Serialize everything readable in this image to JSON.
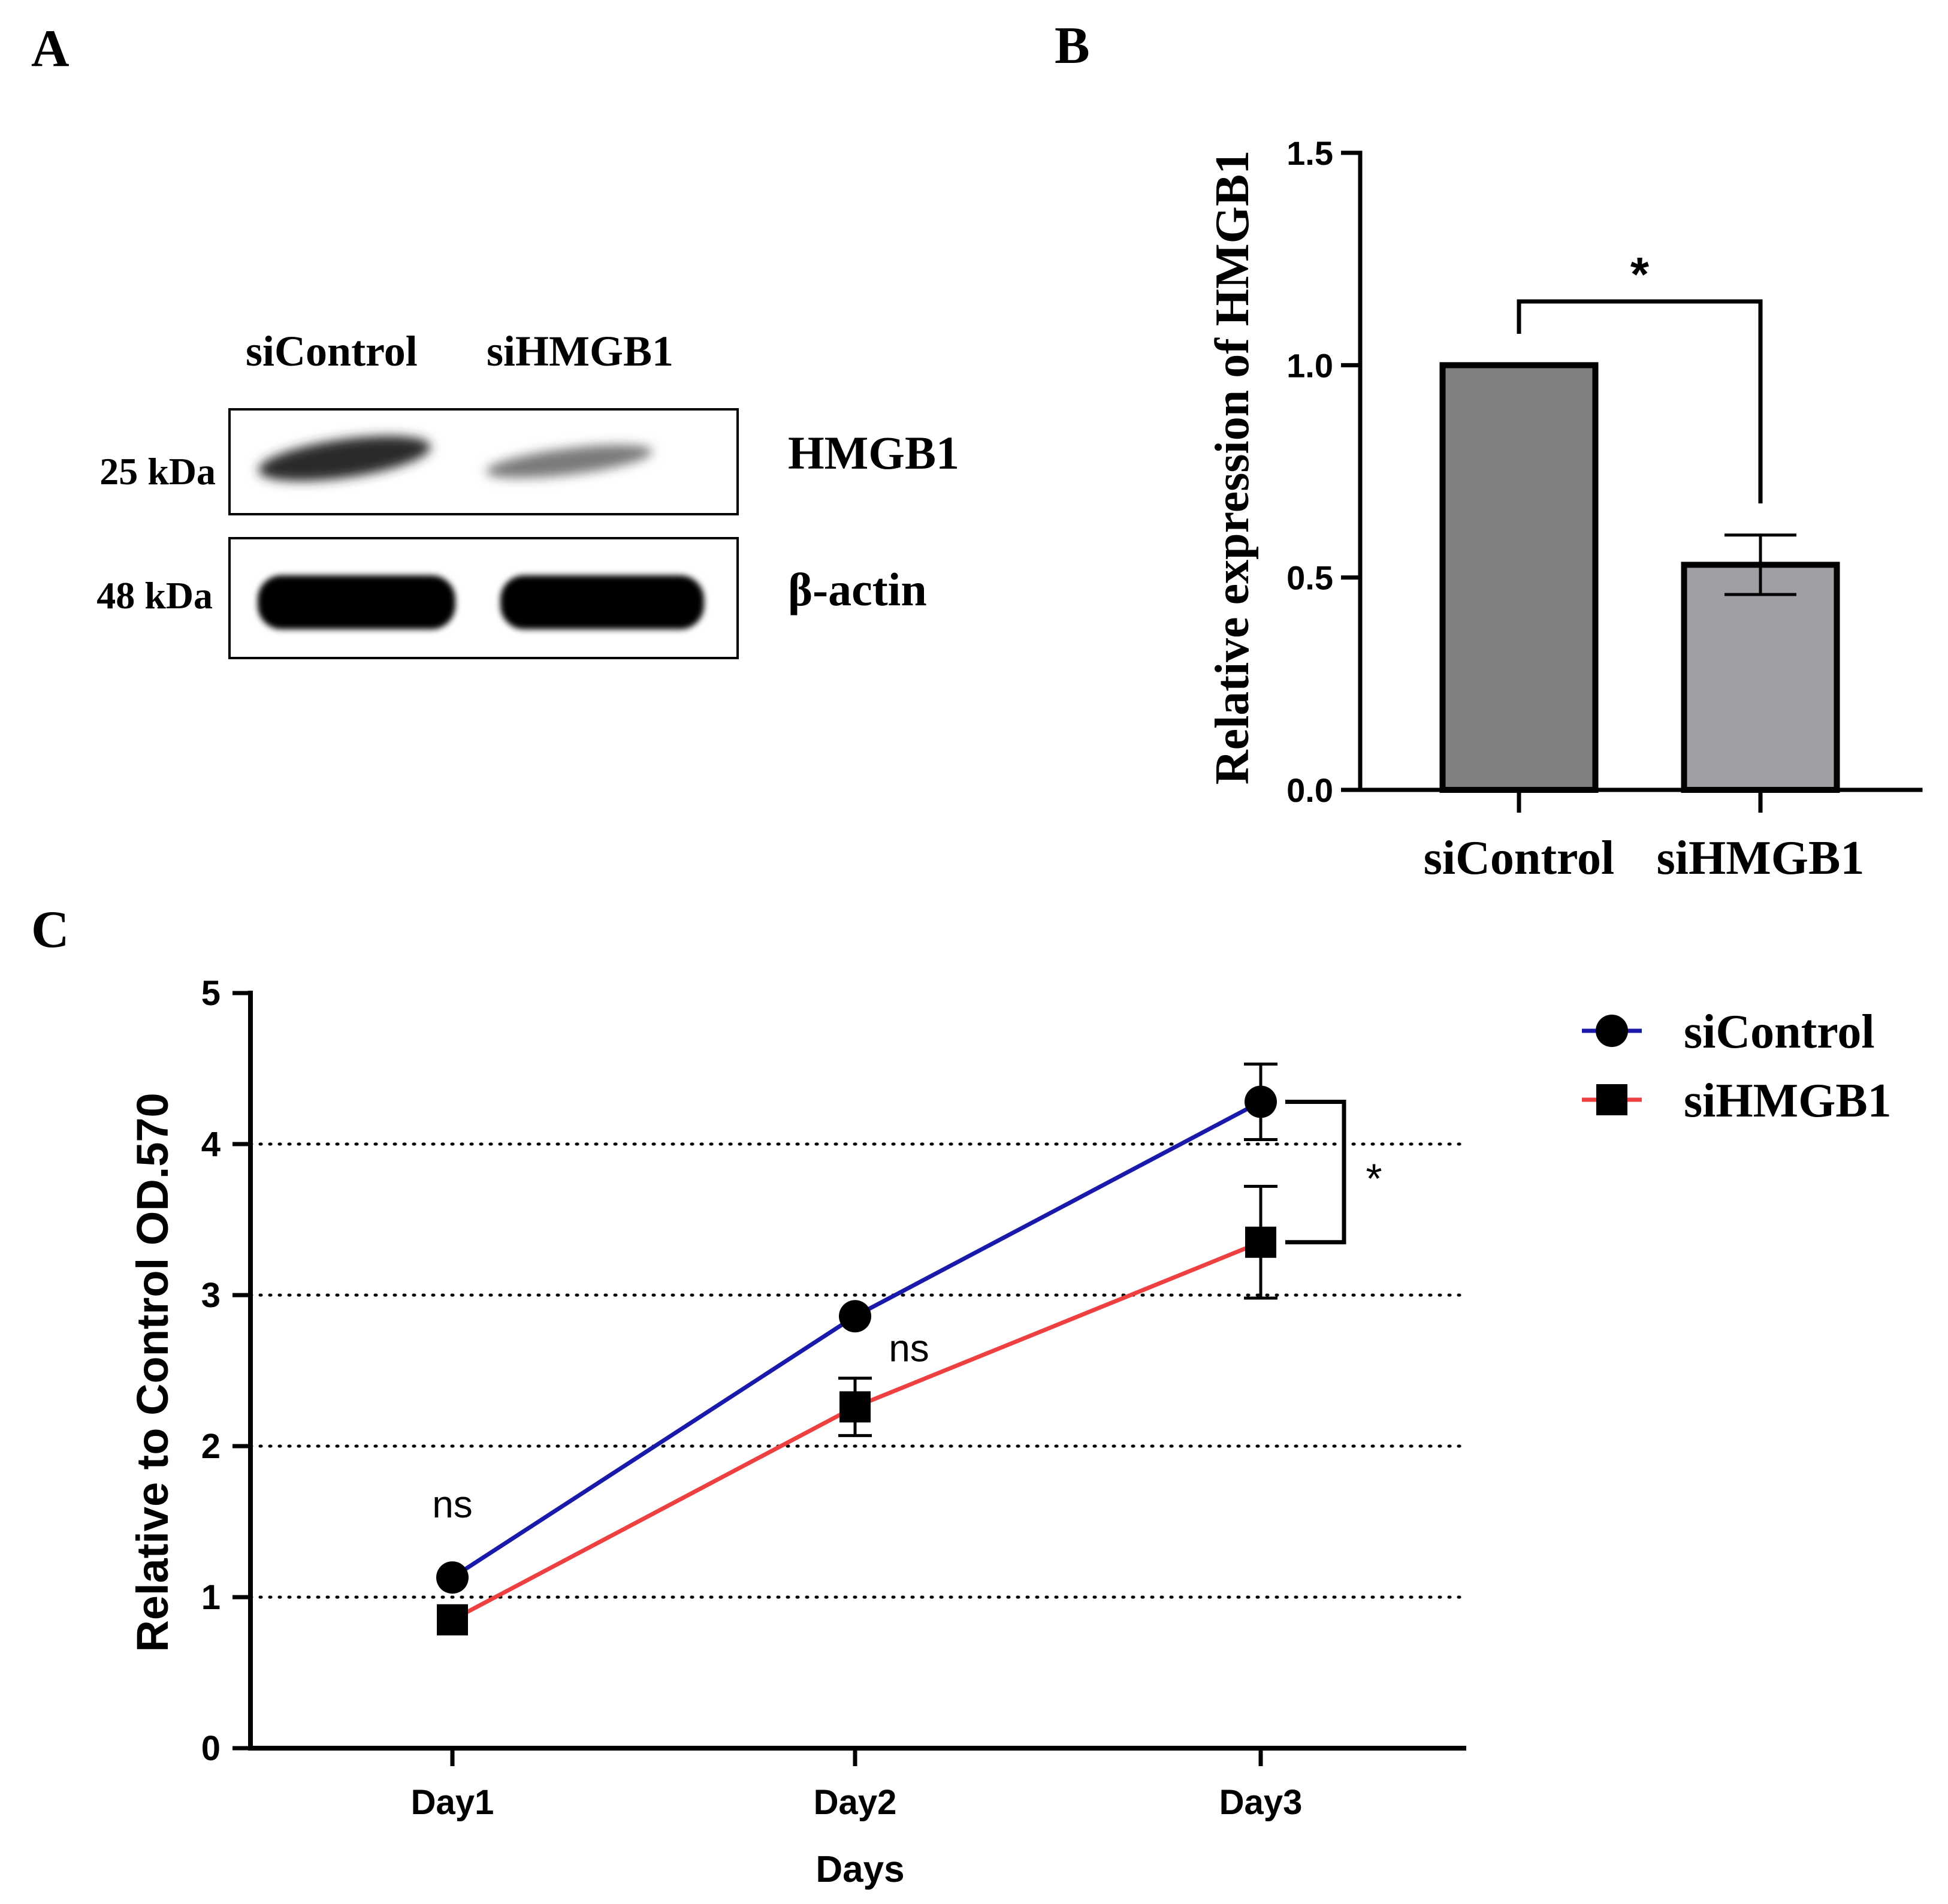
{
  "panel_labels": {
    "a": "A",
    "b": "B",
    "c": "C"
  },
  "western_blot": {
    "lanes": [
      "siControl",
      "siHMGB1"
    ],
    "rows": [
      {
        "protein": "HMGB1",
        "size": "25 kDa"
      },
      {
        "protein": "β-actin",
        "size": "48 kDa"
      }
    ]
  },
  "chart_data": [
    {
      "panel": "B",
      "type": "bar",
      "title": "",
      "xlabel": "",
      "ylabel": "Relative expression of HMGB1",
      "categories": [
        "siControl",
        "siHMGB1"
      ],
      "values": [
        1.0,
        0.53
      ],
      "errors": [
        0,
        0.07
      ],
      "ylim": [
        0,
        1.5
      ],
      "yticks": [
        0.0,
        0.5,
        1.0,
        1.5
      ],
      "ytick_labels": [
        "0.0",
        "0.5",
        "1.0",
        "1.5"
      ],
      "bar_colors": [
        "#808080",
        "#a0a0a4"
      ],
      "significance": {
        "between": [
          "siControl",
          "siHMGB1"
        ],
        "label": "*"
      }
    },
    {
      "panel": "C",
      "type": "line",
      "title": "",
      "xlabel": "Days",
      "ylabel": "Relative to Control OD.570",
      "categories": [
        "Day1",
        "Day2",
        "Day3"
      ],
      "ylim": [
        0,
        5
      ],
      "yticks": [
        0,
        1,
        2,
        3,
        4,
        5
      ],
      "ytick_labels": [
        "0",
        "1",
        "2",
        "3",
        "4",
        "5"
      ],
      "gridlines_y": [
        1,
        2,
        3,
        4
      ],
      "series": [
        {
          "name": "siControl",
          "color": "#1a1aaa",
          "marker": "circle",
          "values": [
            1.13,
            2.86,
            4.28
          ],
          "errors": [
            0,
            0,
            0.25
          ]
        },
        {
          "name": "siHMGB1",
          "color": "#ee4040",
          "marker": "square",
          "values": [
            0.85,
            2.26,
            3.35
          ],
          "errors": [
            0,
            0.19,
            0.37
          ]
        }
      ],
      "annotations": [
        {
          "category": "Day1",
          "label": "ns"
        },
        {
          "category": "Day2",
          "label": "ns"
        }
      ],
      "significance": {
        "category": "Day3",
        "label": "*"
      },
      "legend": "top-right"
    }
  ]
}
